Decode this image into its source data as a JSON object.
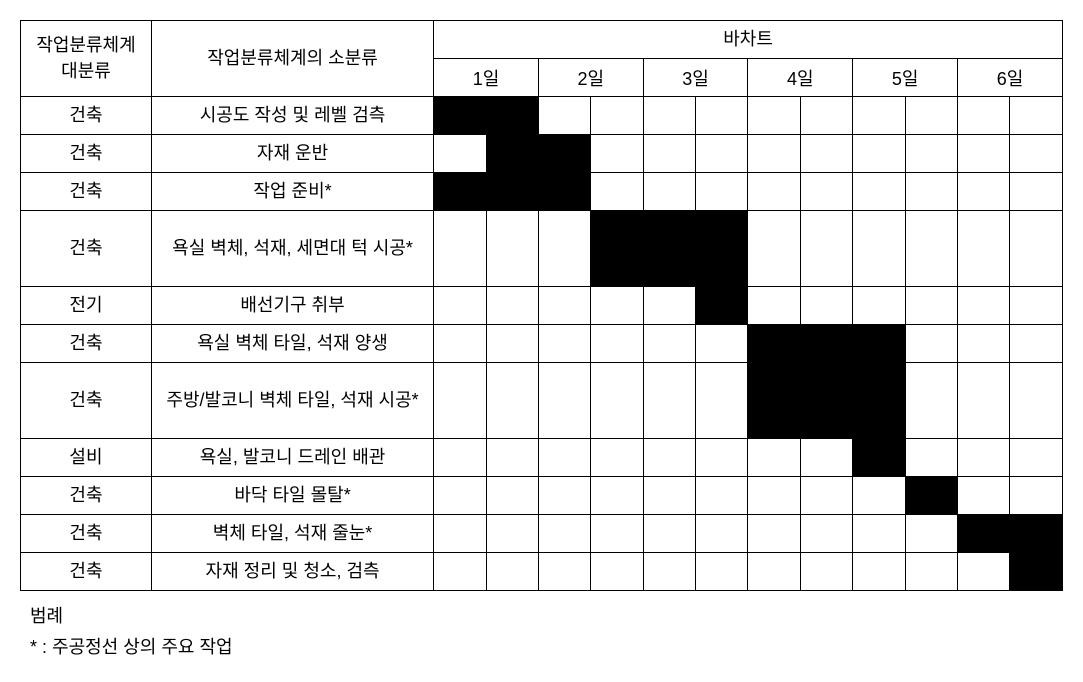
{
  "headers": {
    "major": "작업분류체계\n대분류",
    "minor": "작업분류체계의 소분류",
    "chart_group": "바차트",
    "days": [
      "1일",
      "2일",
      "3일",
      "4일",
      "5일",
      "6일"
    ]
  },
  "day_subdivisions": 2,
  "colors": {
    "bar": "#000000",
    "border": "#000000",
    "background": "#ffffff",
    "text": "#000000"
  },
  "fonts": {
    "cell_size_pt": 14,
    "legend_size_pt": 14
  },
  "rows": [
    {
      "major": "건축",
      "minor": "시공도 작성 및 레벨 검측",
      "start": 0,
      "end": 2,
      "tall": false
    },
    {
      "major": "건축",
      "minor": "자재 운반",
      "start": 1,
      "end": 3,
      "tall": false
    },
    {
      "major": "건축",
      "minor": "작업 준비*",
      "start": 0,
      "end": 3,
      "tall": false
    },
    {
      "major": "건축",
      "minor": "욕실 벽체, 석재, 세면대 턱 시공*",
      "start": 3,
      "end": 6,
      "tall": true
    },
    {
      "major": "전기",
      "minor": "배선기구 취부",
      "start": 5,
      "end": 6,
      "tall": false
    },
    {
      "major": "건축",
      "minor": "욕실 벽체 타일, 석재 양생",
      "start": 6,
      "end": 9,
      "tall": false
    },
    {
      "major": "건축",
      "minor": "주방/발코니 벽체 타일, 석재 시공*",
      "start": 6,
      "end": 9,
      "tall": true
    },
    {
      "major": "설비",
      "minor": "욕실, 발코니 드레인 배관",
      "start": 8,
      "end": 9,
      "tall": false
    },
    {
      "major": "건축",
      "minor": "바닥 타일 몰탈*",
      "start": 9,
      "end": 10,
      "tall": false
    },
    {
      "major": "건축",
      "minor": "벽체 타일, 석재 줄눈*",
      "start": 10,
      "end": 12,
      "tall": false
    },
    {
      "major": "건축",
      "minor": "자재 정리 및 청소, 검측",
      "start": 11,
      "end": 12,
      "tall": false
    }
  ],
  "legend": {
    "title": "범례",
    "note": "* : 주공정선 상의 주요 작업"
  }
}
